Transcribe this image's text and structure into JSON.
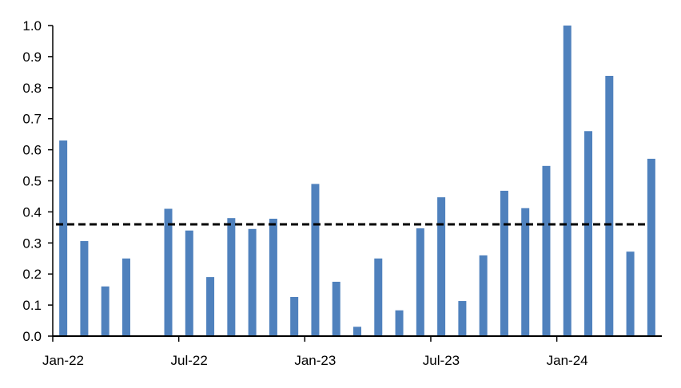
{
  "chart_data": {
    "type": "bar",
    "categories": [
      "Jan-22",
      "Feb-22",
      "Mar-22",
      "Apr-22",
      "May-22",
      "Jun-22",
      "Jul-22",
      "Aug-22",
      "Sep-22",
      "Oct-22",
      "Nov-22",
      "Dec-22",
      "Jan-23",
      "Feb-23",
      "Mar-23",
      "Apr-23",
      "May-23",
      "Jun-23",
      "Jul-23",
      "Aug-23",
      "Sep-23",
      "Oct-23",
      "Nov-23",
      "Dec-23",
      "Jan-24",
      "Feb-24",
      "Mar-24",
      "Apr-24",
      "May-24"
    ],
    "values": [
      0.63,
      0.306,
      0.16,
      0.25,
      0,
      0.41,
      0.34,
      0.19,
      0.38,
      0.345,
      0.378,
      0.126,
      0.49,
      0.175,
      0.03,
      0.25,
      0.083,
      0.347,
      0.447,
      0.113,
      0.26,
      0.468,
      0.412,
      0.548,
      1.0,
      0.66,
      0.838,
      0.272,
      0.571
    ],
    "x_tick_labels": [
      "Jan-22",
      "Jul-22",
      "Jan-23",
      "Jul-23",
      "Jan-24"
    ],
    "y_tick_labels": [
      "0.0",
      "0.1",
      "0.2",
      "0.3",
      "0.4",
      "0.5",
      "0.6",
      "0.7",
      "0.8",
      "0.9",
      "1.0"
    ],
    "ylim": [
      0,
      1.0
    ],
    "reference_line": {
      "value": 0.36,
      "style": "dashed",
      "color": "#000000"
    },
    "bar_color": "#4F81BD",
    "title": "",
    "xlabel": "",
    "ylabel": "",
    "grid": false,
    "legend": "none"
  }
}
